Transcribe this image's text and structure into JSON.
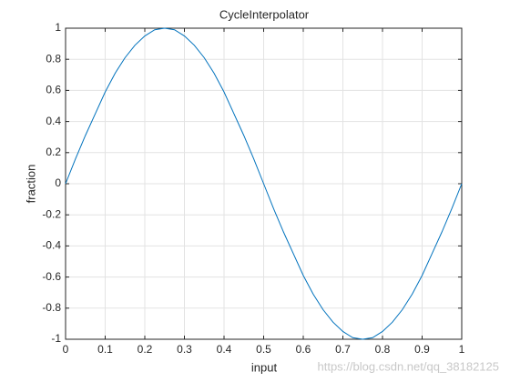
{
  "chart_data": {
    "type": "line",
    "title": "CycleInterpolator",
    "xlabel": "input",
    "ylabel": "fraction",
    "x": [
      0,
      0.025,
      0.05,
      0.075,
      0.1,
      0.125,
      0.15,
      0.175,
      0.2,
      0.225,
      0.25,
      0.275,
      0.3,
      0.325,
      0.35,
      0.375,
      0.4,
      0.425,
      0.45,
      0.475,
      0.5,
      0.525,
      0.55,
      0.575,
      0.6,
      0.625,
      0.65,
      0.675,
      0.7,
      0.725,
      0.75,
      0.775,
      0.8,
      0.825,
      0.85,
      0.875,
      0.9,
      0.925,
      0.95,
      0.975,
      1
    ],
    "series": [
      {
        "color": "#0072bd",
        "values": [
          0,
          0.16,
          0.31,
          0.45,
          0.59,
          0.71,
          0.81,
          0.89,
          0.95,
          0.99,
          1,
          0.99,
          0.95,
          0.89,
          0.81,
          0.71,
          0.59,
          0.45,
          0.31,
          0.16,
          0,
          -0.16,
          -0.31,
          -0.45,
          -0.59,
          -0.71,
          -0.81,
          -0.89,
          -0.95,
          -0.99,
          -1,
          -0.99,
          -0.95,
          -0.89,
          -0.81,
          -0.71,
          -0.59,
          -0.45,
          -0.31,
          -0.16,
          0
        ]
      }
    ],
    "xlim": [
      0,
      1
    ],
    "xticks": [
      0,
      0.1,
      0.2,
      0.3,
      0.4,
      0.5,
      0.6,
      0.7,
      0.8,
      0.9,
      1
    ],
    "ylim": [
      -1,
      1
    ],
    "yticks": [
      -1,
      -0.8,
      -0.6,
      -0.4,
      -0.2,
      0,
      0.2,
      0.4,
      0.6,
      0.8,
      1
    ],
    "grid": true,
    "watermark": "https://blog.csdn.net/qq_38182125"
  }
}
